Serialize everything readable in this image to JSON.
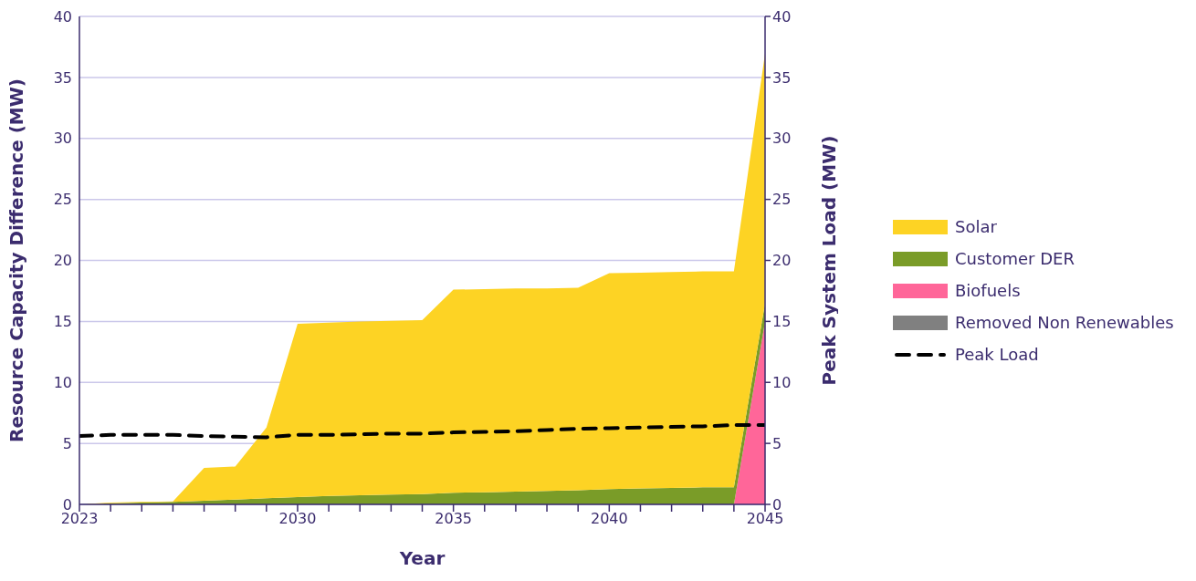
{
  "chart_data": {
    "type": "area",
    "stacked": true,
    "xlabel": "Year",
    "ylabel": "Resource Capacity Difference (MW)",
    "y2label": "Peak System Load (MW)",
    "x": [
      2023,
      2024,
      2025,
      2026,
      2027,
      2028,
      2029,
      2030,
      2031,
      2032,
      2033,
      2034,
      2035,
      2036,
      2037,
      2038,
      2039,
      2040,
      2041,
      2042,
      2043,
      2044,
      2045
    ],
    "xlim": [
      2023,
      2045
    ],
    "xticks": [
      2023,
      {
        "value": 2024,
        "label": null
      },
      {
        "value": 2025,
        "label": null
      },
      {
        "value": 2026,
        "label": null
      },
      {
        "value": 2027,
        "label": null
      },
      {
        "value": 2028,
        "label": null
      },
      {
        "value": 2029,
        "label": null
      },
      2030,
      {
        "value": 2031,
        "label": null
      },
      {
        "value": 2032,
        "label": null
      },
      {
        "value": 2033,
        "label": null
      },
      {
        "value": 2034,
        "label": null
      },
      2035,
      {
        "value": 2036,
        "label": null
      },
      {
        "value": 2037,
        "label": null
      },
      {
        "value": 2038,
        "label": null
      },
      {
        "value": 2039,
        "label": null
      },
      2040,
      {
        "value": 2041,
        "label": null
      },
      {
        "value": 2042,
        "label": null
      },
      {
        "value": 2043,
        "label": null
      },
      {
        "value": 2044,
        "label": null
      },
      2045
    ],
    "ylim": [
      0,
      40
    ],
    "yticks": [
      0,
      5,
      10,
      15,
      20,
      25,
      30,
      35,
      40
    ],
    "y2lim": [
      0,
      40
    ],
    "y2ticks": [
      0,
      5,
      10,
      15,
      20,
      25,
      30,
      35,
      40
    ],
    "grid": "y",
    "legend": "right",
    "series": [
      {
        "name": "Removed Non Renewables",
        "color": "#808080",
        "values": [
          null,
          null,
          null,
          null,
          null,
          null,
          null,
          null,
          null,
          null,
          null,
          null,
          null,
          null,
          null,
          null,
          null,
          null,
          null,
          null,
          null,
          null,
          null
        ]
      },
      {
        "name": "Biofuels",
        "color": "#ff6699",
        "values": [
          0,
          0,
          0,
          0,
          0,
          0,
          0,
          0,
          0,
          0,
          0,
          0,
          0,
          0,
          0,
          0,
          0,
          0,
          0,
          0,
          0,
          0,
          15
        ]
      },
      {
        "name": "Customer DER",
        "color": "#7a9c28",
        "values": [
          0,
          0.1,
          0.15,
          0.2,
          0.3,
          0.4,
          0.5,
          0.6,
          0.7,
          0.75,
          0.8,
          0.85,
          0.95,
          1.0,
          1.05,
          1.1,
          1.15,
          1.25,
          1.3,
          1.35,
          1.4,
          1.4,
          1.5
        ]
      },
      {
        "name": "Solar",
        "color": "#fdd324",
        "values": [
          0,
          0.05,
          0.05,
          0.05,
          2.7,
          2.7,
          5.8,
          14.2,
          14.2,
          14.25,
          14.25,
          14.25,
          16.65,
          16.65,
          16.65,
          16.6,
          16.6,
          17.7,
          17.7,
          17.7,
          17.7,
          17.7,
          20.5
        ]
      },
      {
        "name": "Peak Load",
        "type": "line",
        "axis": "y2",
        "color": "#000000",
        "line_style": "dashed",
        "values": [
          5.6,
          5.7,
          5.7,
          5.7,
          5.6,
          5.55,
          5.5,
          5.7,
          5.7,
          5.75,
          5.8,
          5.8,
          5.9,
          5.95,
          6.0,
          6.1,
          6.2,
          6.25,
          6.3,
          6.35,
          6.4,
          6.5,
          6.5
        ]
      }
    ]
  }
}
